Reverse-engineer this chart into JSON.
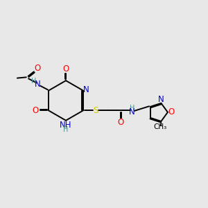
{
  "bg_color": "#e8e8e8",
  "figure_size": [
    3.0,
    3.0
  ],
  "dpi": 100,
  "colors": {
    "C": "#000000",
    "N": "#0000cc",
    "O": "#ff0000",
    "S": "#cccc00",
    "H": "#4a9090",
    "bond": "#000000"
  },
  "xlim": [
    0,
    12
  ],
  "ylim": [
    0,
    12
  ],
  "bond_lw": 1.4,
  "font_size": 8.5
}
